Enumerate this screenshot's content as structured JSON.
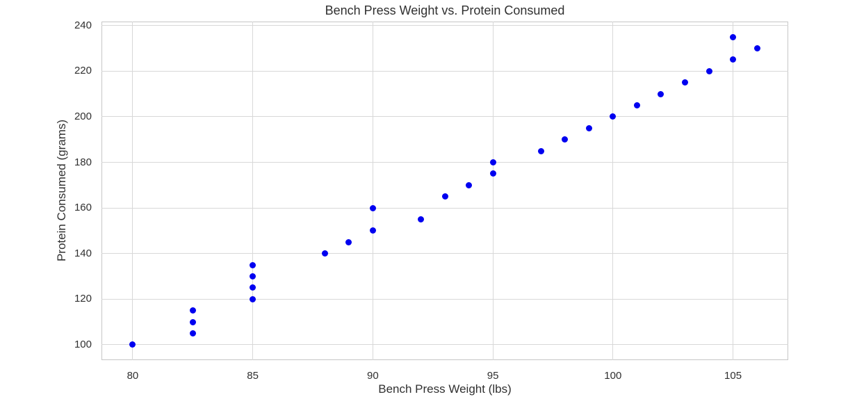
{
  "chart_data": {
    "type": "scatter",
    "title": "Bench Press Weight vs. Protein Consumed",
    "xlabel": "Bench Press Weight (lbs)",
    "ylabel": "Protein Consumed (grams)",
    "x_ticks": [
      80,
      85,
      90,
      95,
      100,
      105
    ],
    "y_ticks": [
      100,
      120,
      140,
      160,
      180,
      200,
      220,
      240
    ],
    "xlim": [
      78.7,
      107.3
    ],
    "ylim": [
      93.25,
      241.75
    ],
    "grid": true,
    "legend": "none",
    "marker_color": "#0000f0",
    "grid_color": "#d8d8d8",
    "spine_color": "#c6c6c6",
    "text_color": "#303030",
    "background_color": "#ffffff",
    "points": [
      [
        80,
        100
      ],
      [
        82.5,
        105
      ],
      [
        82.5,
        110
      ],
      [
        82.5,
        115
      ],
      [
        85,
        120
      ],
      [
        85,
        125
      ],
      [
        85,
        130
      ],
      [
        85,
        135
      ],
      [
        88,
        140
      ],
      [
        89,
        145
      ],
      [
        90,
        150
      ],
      [
        90,
        160
      ],
      [
        92,
        155
      ],
      [
        93,
        165
      ],
      [
        94,
        170
      ],
      [
        95,
        175
      ],
      [
        95,
        180
      ],
      [
        97,
        185
      ],
      [
        98,
        190
      ],
      [
        99,
        195
      ],
      [
        100,
        200
      ],
      [
        101,
        205
      ],
      [
        102,
        210
      ],
      [
        103,
        215
      ],
      [
        104,
        220
      ],
      [
        105,
        225
      ],
      [
        105,
        235
      ],
      [
        106,
        230
      ]
    ]
  }
}
